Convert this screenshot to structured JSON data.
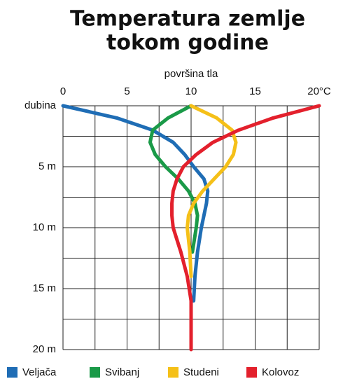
{
  "chart_data": {
    "type": "line",
    "title": [
      "Temperatura zemlje",
      "tokom godine"
    ],
    "xlabel": "površina tla",
    "x": [
      0,
      1,
      2,
      3,
      4,
      5,
      6,
      7,
      8,
      9,
      10,
      12,
      14,
      16,
      18,
      20
    ],
    "series": [
      {
        "name": "Veljača",
        "color": "#1f6db5",
        "values": [
          0,
          4.2,
          7.0,
          8.6,
          9.5,
          10.2,
          11.0,
          11.3,
          11.2,
          11.0,
          10.8,
          10.5,
          10.3,
          10.2,
          null,
          null
        ]
      },
      {
        "name": "Svibanj",
        "color": "#1a9a48",
        "values": [
          10,
          8.2,
          7.0,
          6.8,
          7.2,
          8.0,
          9.0,
          9.8,
          10.3,
          10.5,
          10.4,
          10.1,
          null,
          null,
          null,
          null
        ]
      },
      {
        "name": "Studeni",
        "color": "#f5c018",
        "values": [
          10,
          12,
          13.2,
          13.5,
          13.3,
          12.7,
          11.8,
          10.9,
          10.2,
          9.8,
          9.7,
          9.9,
          10.0,
          null,
          null,
          null
        ]
      },
      {
        "name": "Kolovoz",
        "color": "#e3202c",
        "values": [
          20,
          16.4,
          13.7,
          11.7,
          10.4,
          9.4,
          8.9,
          8.6,
          8.5,
          8.5,
          8.6,
          9.2,
          9.7,
          10.0,
          10.0,
          10.0
        ]
      }
    ],
    "xlim": [
      0,
      20
    ],
    "ylim": [
      0,
      20
    ],
    "xticks": [
      0,
      5,
      10,
      15,
      {
        "value": 20,
        "label": "20°C"
      }
    ],
    "yticks": [
      {
        "value": 0,
        "label": "dubina"
      },
      {
        "value": 5,
        "label": "5 m"
      },
      {
        "value": 10,
        "label": "10 m"
      },
      {
        "value": 15,
        "label": "15 m"
      },
      {
        "value": 20,
        "label": "20 m"
      }
    ],
    "xminorticks": [
      2.5,
      7.5,
      12.5,
      17.5
    ],
    "yminorticks": [
      2.5,
      7.5,
      12.5,
      17.5
    ],
    "grid": true,
    "legend": "bottom"
  }
}
